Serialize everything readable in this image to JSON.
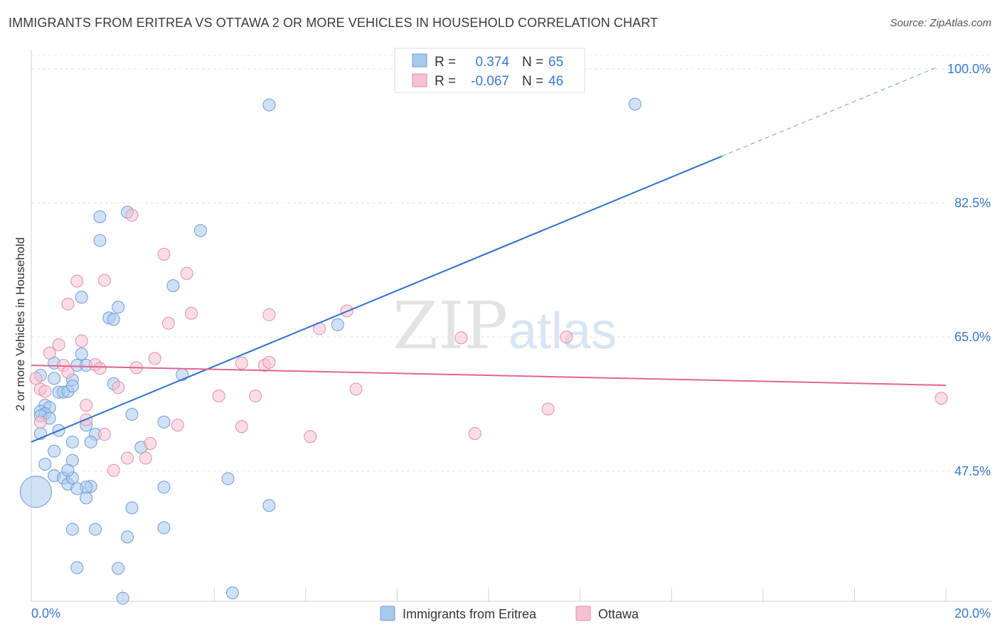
{
  "header": {
    "title": "IMMIGRANTS FROM ERITREA VS OTTAWA 2 OR MORE VEHICLES IN HOUSEHOLD CORRELATION CHART",
    "source": "Source: ZipAtlas.com"
  },
  "watermark": {
    "zip": "ZIP",
    "atlas": "atlas"
  },
  "stats_legend": {
    "rows": [
      {
        "r_label": "R =",
        "r_value": "0.374",
        "n_label": "N =",
        "n_value": "65",
        "color": "#a9c8ee",
        "stroke": "#6c9bd6"
      },
      {
        "r_label": "R =",
        "r_value": "-0.067",
        "n_label": "N =",
        "n_value": "46",
        "color": "#f6c1d2",
        "stroke": "#e58bab"
      }
    ]
  },
  "chart_data": {
    "type": "scatter",
    "title": "IMMIGRANTS FROM ERITREA VS OTTAWA 2 OR MORE VEHICLES IN HOUSEHOLD CORRELATION CHART",
    "xlabel": "",
    "ylabel": "2 or more Vehicles in Household",
    "xlim": [
      0,
      20
    ],
    "ylim": [
      30.5,
      102.5
    ],
    "x_ticks": [
      "0.0%",
      "20.0%"
    ],
    "y_ticks": [
      {
        "value": 47.5,
        "label": "47.5%"
      },
      {
        "value": 65.0,
        "label": "65.0%"
      },
      {
        "value": 82.5,
        "label": "82.5%"
      },
      {
        "value": 100.0,
        "label": "100.0%"
      }
    ],
    "grid": true,
    "legend_position": "bottom-center",
    "series": [
      {
        "name": "Immigrants from Eritrea",
        "color": "#a9c8ee",
        "stroke": "#6c9bd6",
        "trend": {
          "x0": 0,
          "y0": 51.3,
          "x1": 15.1,
          "y1": 88.6,
          "dash_to_x": 19.8,
          "dash_to_y": 100.2,
          "color": "#2b6fcc"
        },
        "points": [
          [
            0.2,
            60.0
          ],
          [
            0.3,
            56.1
          ],
          [
            0.4,
            55.8
          ],
          [
            0.2,
            55.3
          ],
          [
            0.3,
            55.0
          ],
          [
            0.2,
            54.7
          ],
          [
            0.4,
            54.4
          ],
          [
            0.2,
            52.4
          ],
          [
            0.5,
            50.1
          ],
          [
            0.3,
            48.4
          ],
          [
            0.5,
            46.9
          ],
          [
            0.7,
            46.6
          ],
          [
            0.8,
            45.8
          ],
          [
            0.9,
            51.3
          ],
          [
            0.9,
            48.9
          ],
          [
            0.6,
            52.8
          ],
          [
            0.6,
            57.8
          ],
          [
            0.7,
            57.8
          ],
          [
            0.8,
            57.9
          ],
          [
            0.9,
            59.4
          ],
          [
            0.9,
            58.6
          ],
          [
            0.5,
            59.6
          ],
          [
            0.5,
            61.6
          ],
          [
            1.0,
            61.3
          ],
          [
            1.1,
            62.8
          ],
          [
            1.2,
            61.3
          ],
          [
            1.1,
            70.2
          ],
          [
            1.5,
            80.7
          ],
          [
            1.5,
            77.6
          ],
          [
            1.7,
            67.5
          ],
          [
            1.8,
            67.3
          ],
          [
            1.9,
            68.9
          ],
          [
            2.1,
            81.3
          ],
          [
            1.8,
            58.9
          ],
          [
            2.2,
            54.9
          ],
          [
            2.4,
            50.6
          ],
          [
            1.4,
            52.3
          ],
          [
            1.2,
            53.5
          ],
          [
            1.3,
            51.3
          ],
          [
            1.3,
            45.5
          ],
          [
            1.2,
            44.0
          ],
          [
            0.9,
            39.9
          ],
          [
            1.4,
            39.9
          ],
          [
            2.1,
            38.9
          ],
          [
            2.2,
            42.7
          ],
          [
            2.9,
            40.1
          ],
          [
            2.9,
            45.4
          ],
          [
            2.9,
            53.9
          ],
          [
            3.3,
            60.1
          ],
          [
            3.1,
            71.7
          ],
          [
            3.7,
            78.9
          ],
          [
            1.0,
            34.9
          ],
          [
            1.9,
            34.8
          ],
          [
            2.0,
            30.9
          ],
          [
            4.3,
            46.5
          ],
          [
            4.4,
            31.6
          ],
          [
            5.2,
            43.0
          ],
          [
            5.2,
            95.3
          ],
          [
            6.7,
            66.6
          ],
          [
            13.2,
            95.4
          ],
          [
            0.9,
            46.6
          ],
          [
            1.2,
            45.4
          ],
          [
            0.8,
            47.6
          ],
          [
            0.1,
            44.8
          ],
          [
            1.0,
            45.2
          ]
        ],
        "point_sizes": "one large point at [0.1, 44.8]"
      },
      {
        "name": "Ottawa",
        "color": "#f6c1d2",
        "stroke": "#e58bab",
        "trend": {
          "x0": 0,
          "y0": 61.3,
          "x1": 20.0,
          "y1": 58.7,
          "color": "#e0648f"
        },
        "points": [
          [
            0.1,
            59.6
          ],
          [
            0.2,
            58.2
          ],
          [
            0.3,
            57.9
          ],
          [
            0.4,
            62.9
          ],
          [
            0.6,
            64.0
          ],
          [
            0.7,
            61.3
          ],
          [
            0.8,
            60.4
          ],
          [
            0.8,
            69.3
          ],
          [
            1.0,
            72.3
          ],
          [
            1.1,
            64.5
          ],
          [
            1.2,
            54.2
          ],
          [
            1.2,
            56.1
          ],
          [
            1.4,
            61.4
          ],
          [
            1.5,
            60.9
          ],
          [
            1.6,
            52.3
          ],
          [
            1.6,
            72.4
          ],
          [
            1.8,
            47.6
          ],
          [
            1.9,
            58.4
          ],
          [
            2.1,
            49.2
          ],
          [
            2.2,
            80.9
          ],
          [
            2.3,
            61.0
          ],
          [
            2.5,
            49.2
          ],
          [
            2.6,
            51.1
          ],
          [
            2.7,
            62.2
          ],
          [
            2.9,
            75.8
          ],
          [
            3.0,
            66.8
          ],
          [
            3.2,
            53.5
          ],
          [
            3.4,
            73.3
          ],
          [
            3.5,
            68.1
          ],
          [
            4.1,
            57.3
          ],
          [
            4.6,
            61.6
          ],
          [
            4.6,
            53.3
          ],
          [
            4.9,
            57.3
          ],
          [
            5.1,
            61.3
          ],
          [
            5.2,
            61.7
          ],
          [
            5.2,
            67.9
          ],
          [
            6.1,
            52.0
          ],
          [
            6.3,
            66.1
          ],
          [
            6.9,
            68.4
          ],
          [
            7.1,
            58.2
          ],
          [
            9.7,
            52.4
          ],
          [
            9.4,
            64.9
          ],
          [
            11.3,
            55.6
          ],
          [
            11.7,
            65.0
          ],
          [
            19.9,
            57.0
          ],
          [
            0.2,
            53.9
          ]
        ]
      }
    ]
  }
}
